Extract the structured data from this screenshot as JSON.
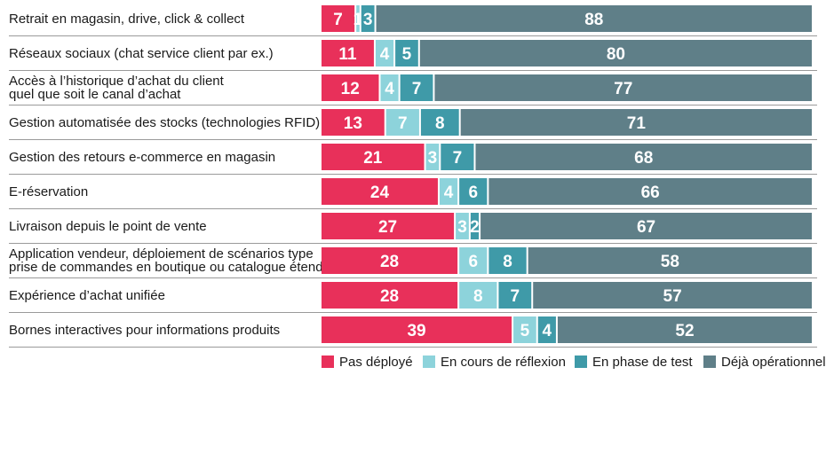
{
  "chart_data": {
    "type": "bar",
    "orientation": "horizontal",
    "stacked": true,
    "stacking": "percent",
    "categories": [
      [
        "Retrait en magasin, drive, click & collect"
      ],
      [
        "Réseaux sociaux (chat service client par ex.)"
      ],
      [
        "Accès à l’historique d’achat du client",
        "quel que soit le canal d’achat"
      ],
      [
        "Gestion automatisée des stocks (technologies RFID)"
      ],
      [
        "Gestion des retours e-commerce en magasin"
      ],
      [
        "E-réservation"
      ],
      [
        "Livraison depuis le point de vente"
      ],
      [
        "Application vendeur, déploiement de scénarios type",
        "prise de commandes en boutique ou catalogue étendu"
      ],
      [
        "Expérience d’achat unifiée"
      ],
      [
        "Bornes interactives pour informations produits"
      ]
    ],
    "series": [
      {
        "name": "Pas déployé",
        "color": "#e8305a",
        "values": [
          7,
          11,
          12,
          13,
          21,
          24,
          27,
          28,
          28,
          39
        ]
      },
      {
        "name": "En cours de réflexion",
        "color": "#8dd3db",
        "values": [
          1,
          4,
          4,
          7,
          3,
          4,
          3,
          6,
          8,
          5
        ]
      },
      {
        "name": "En phase de test",
        "color": "#3f9aa8",
        "values": [
          3,
          5,
          7,
          8,
          7,
          6,
          2,
          8,
          7,
          4
        ]
      },
      {
        "name": "Déjà opérationnel",
        "color": "#5f7f88",
        "values": [
          88,
          80,
          77,
          71,
          68,
          66,
          67,
          58,
          57,
          52
        ]
      }
    ],
    "legend_position": "bottom-right",
    "grid": false
  }
}
